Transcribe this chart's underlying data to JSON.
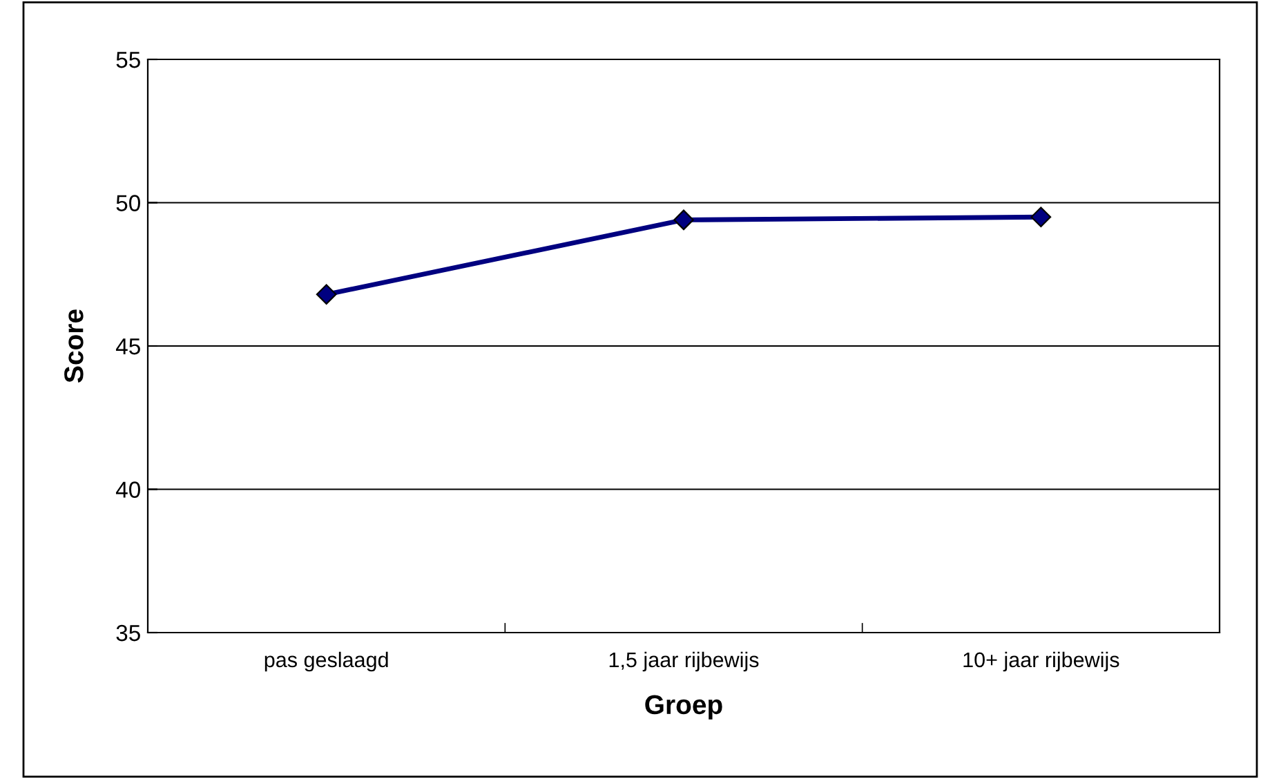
{
  "chart_data": {
    "type": "line",
    "xlabel": "Groep",
    "ylabel": "Score",
    "categories": [
      "pas geslaagd",
      "1,5 jaar rijbewijs",
      "10+ jaar rijbewijs"
    ],
    "series": [
      {
        "color": "#000080",
        "values": [
          46.8,
          49.4,
          49.5
        ]
      }
    ],
    "ylim": [
      35,
      55
    ],
    "yticks": [
      35,
      40,
      45,
      50,
      55
    ],
    "grid": "y",
    "marker": "diamond",
    "line_style": "solid",
    "legend": false
  }
}
